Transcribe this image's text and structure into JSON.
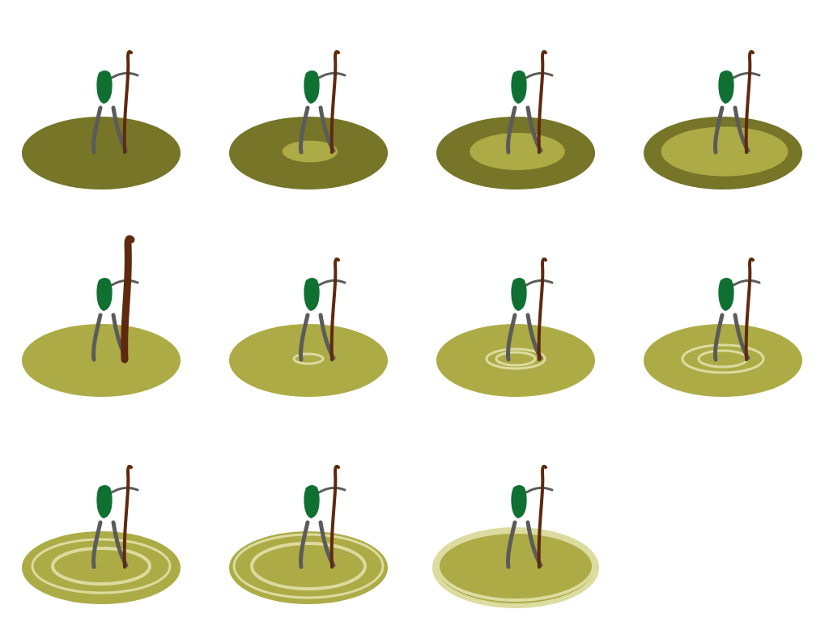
{
  "sprite_sheet": {
    "columns": 4,
    "rows": 3,
    "frame_count": 11,
    "colors": {
      "background": "#ffffff",
      "ground_dark": "#767528",
      "ground_light": "#adab45",
      "ring": "#dcdba0",
      "figure_body": "#0f7032",
      "figure_limbs": "#5b5b5b",
      "staff": "#5e2a0e"
    },
    "frames": [
      {
        "index": 1,
        "glow": 0.0,
        "rings": 0,
        "pose": "stand"
      },
      {
        "index": 2,
        "glow": 0.35,
        "rings": 0,
        "pose": "stand"
      },
      {
        "index": 3,
        "glow": 0.6,
        "rings": 0,
        "pose": "stand"
      },
      {
        "index": 4,
        "glow": 0.8,
        "rings": 0,
        "pose": "stand"
      },
      {
        "index": 5,
        "glow": 1.0,
        "rings": 0,
        "pose": "raise-staff"
      },
      {
        "index": 6,
        "glow": 1.0,
        "rings": 1,
        "pose": "stand"
      },
      {
        "index": 7,
        "glow": 1.0,
        "rings": 2,
        "pose": "stand"
      },
      {
        "index": 8,
        "glow": 1.0,
        "rings": 2,
        "pose": "stand"
      },
      {
        "index": 9,
        "glow": 1.0,
        "rings": 2,
        "pose": "stand"
      },
      {
        "index": 10,
        "glow": 1.0,
        "rings": 2,
        "pose": "stand"
      },
      {
        "index": 11,
        "glow": 1.0,
        "rings": 1,
        "pose": "stand"
      }
    ]
  }
}
